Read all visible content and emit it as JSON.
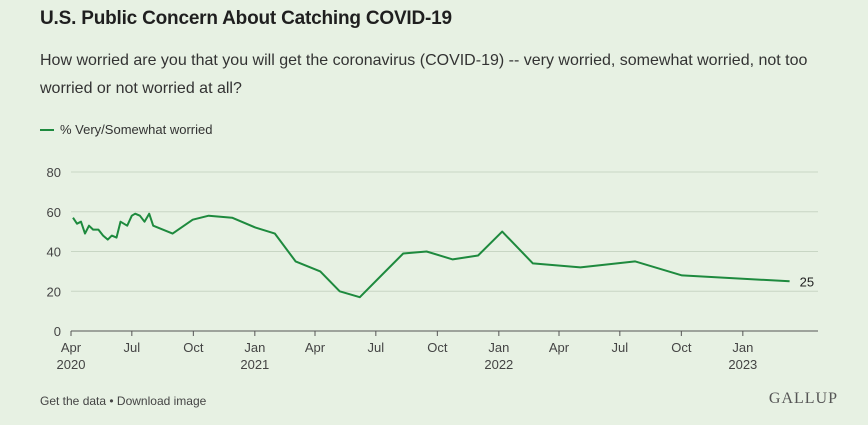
{
  "title": "U.S. Public Concern About Catching COVID-19",
  "subtitle": "How worried are you that you will get the coronavirus (COVID-19) -- very worried, somewhat worried, not too worried or not worried at all?",
  "footer": {
    "get_data": "Get the data",
    "separator": " • ",
    "download": "Download image"
  },
  "brand": "GALLUP",
  "colors": {
    "line": "#1e8a3e",
    "grid": "#c8d6c4",
    "background": "#e7f1e3"
  },
  "chart_data": {
    "type": "line",
    "title": "U.S. Public Concern About Catching COVID-19",
    "xlabel": "",
    "ylabel": "",
    "ylim": [
      0,
      80
    ],
    "yticks": [
      0,
      20,
      40,
      60,
      80
    ],
    "xlim": [
      "2020-04-01",
      "2023-04-01"
    ],
    "xticks": [
      {
        "date": "2020-04-01",
        "label": "Apr",
        "year": "2020"
      },
      {
        "date": "2020-07-01",
        "label": "Jul",
        "year": ""
      },
      {
        "date": "2020-10-01",
        "label": "Oct",
        "year": ""
      },
      {
        "date": "2021-01-01",
        "label": "Jan",
        "year": "2021"
      },
      {
        "date": "2021-04-01",
        "label": "Apr",
        "year": ""
      },
      {
        "date": "2021-07-01",
        "label": "Jul",
        "year": ""
      },
      {
        "date": "2021-10-01",
        "label": "Oct",
        "year": ""
      },
      {
        "date": "2022-01-01",
        "label": "Jan",
        "year": "2022"
      },
      {
        "date": "2022-04-01",
        "label": "Apr",
        "year": ""
      },
      {
        "date": "2022-07-01",
        "label": "Jul",
        "year": ""
      },
      {
        "date": "2022-10-01",
        "label": "Oct",
        "year": ""
      },
      {
        "date": "2023-01-01",
        "label": "Jan",
        "year": "2023"
      }
    ],
    "grid": true,
    "legend_position": "top-left",
    "series": [
      {
        "name": "% Very/Somewhat worried",
        "end_label": "25",
        "points": [
          {
            "date": "2020-04-04",
            "value": 57
          },
          {
            "date": "2020-04-10",
            "value": 54
          },
          {
            "date": "2020-04-16",
            "value": 55
          },
          {
            "date": "2020-04-22",
            "value": 49
          },
          {
            "date": "2020-04-28",
            "value": 53
          },
          {
            "date": "2020-05-04",
            "value": 51
          },
          {
            "date": "2020-05-12",
            "value": 51
          },
          {
            "date": "2020-05-19",
            "value": 48
          },
          {
            "date": "2020-05-26",
            "value": 46
          },
          {
            "date": "2020-06-01",
            "value": 48
          },
          {
            "date": "2020-06-08",
            "value": 47
          },
          {
            "date": "2020-06-14",
            "value": 55
          },
          {
            "date": "2020-06-24",
            "value": 53
          },
          {
            "date": "2020-07-01",
            "value": 58
          },
          {
            "date": "2020-07-06",
            "value": 59
          },
          {
            "date": "2020-07-13",
            "value": 58
          },
          {
            "date": "2020-07-20",
            "value": 55
          },
          {
            "date": "2020-07-27",
            "value": 59
          },
          {
            "date": "2020-08-02",
            "value": 53
          },
          {
            "date": "2020-08-31",
            "value": 49
          },
          {
            "date": "2020-09-30",
            "value": 56
          },
          {
            "date": "2020-10-24",
            "value": 58
          },
          {
            "date": "2020-11-28",
            "value": 57
          },
          {
            "date": "2021-01-02",
            "value": 52
          },
          {
            "date": "2021-01-31",
            "value": 49
          },
          {
            "date": "2021-03-03",
            "value": 35
          },
          {
            "date": "2021-04-09",
            "value": 30
          },
          {
            "date": "2021-05-08",
            "value": 20
          },
          {
            "date": "2021-06-07",
            "value": 17
          },
          {
            "date": "2021-08-11",
            "value": 39
          },
          {
            "date": "2021-09-15",
            "value": 40
          },
          {
            "date": "2021-10-24",
            "value": 36
          },
          {
            "date": "2021-12-01",
            "value": 38
          },
          {
            "date": "2022-01-06",
            "value": 50
          },
          {
            "date": "2022-02-21",
            "value": 34
          },
          {
            "date": "2022-05-03",
            "value": 32
          },
          {
            "date": "2022-07-24",
            "value": 35
          },
          {
            "date": "2022-10-02",
            "value": 28
          },
          {
            "date": "2023-03-12",
            "value": 25
          }
        ]
      }
    ]
  }
}
